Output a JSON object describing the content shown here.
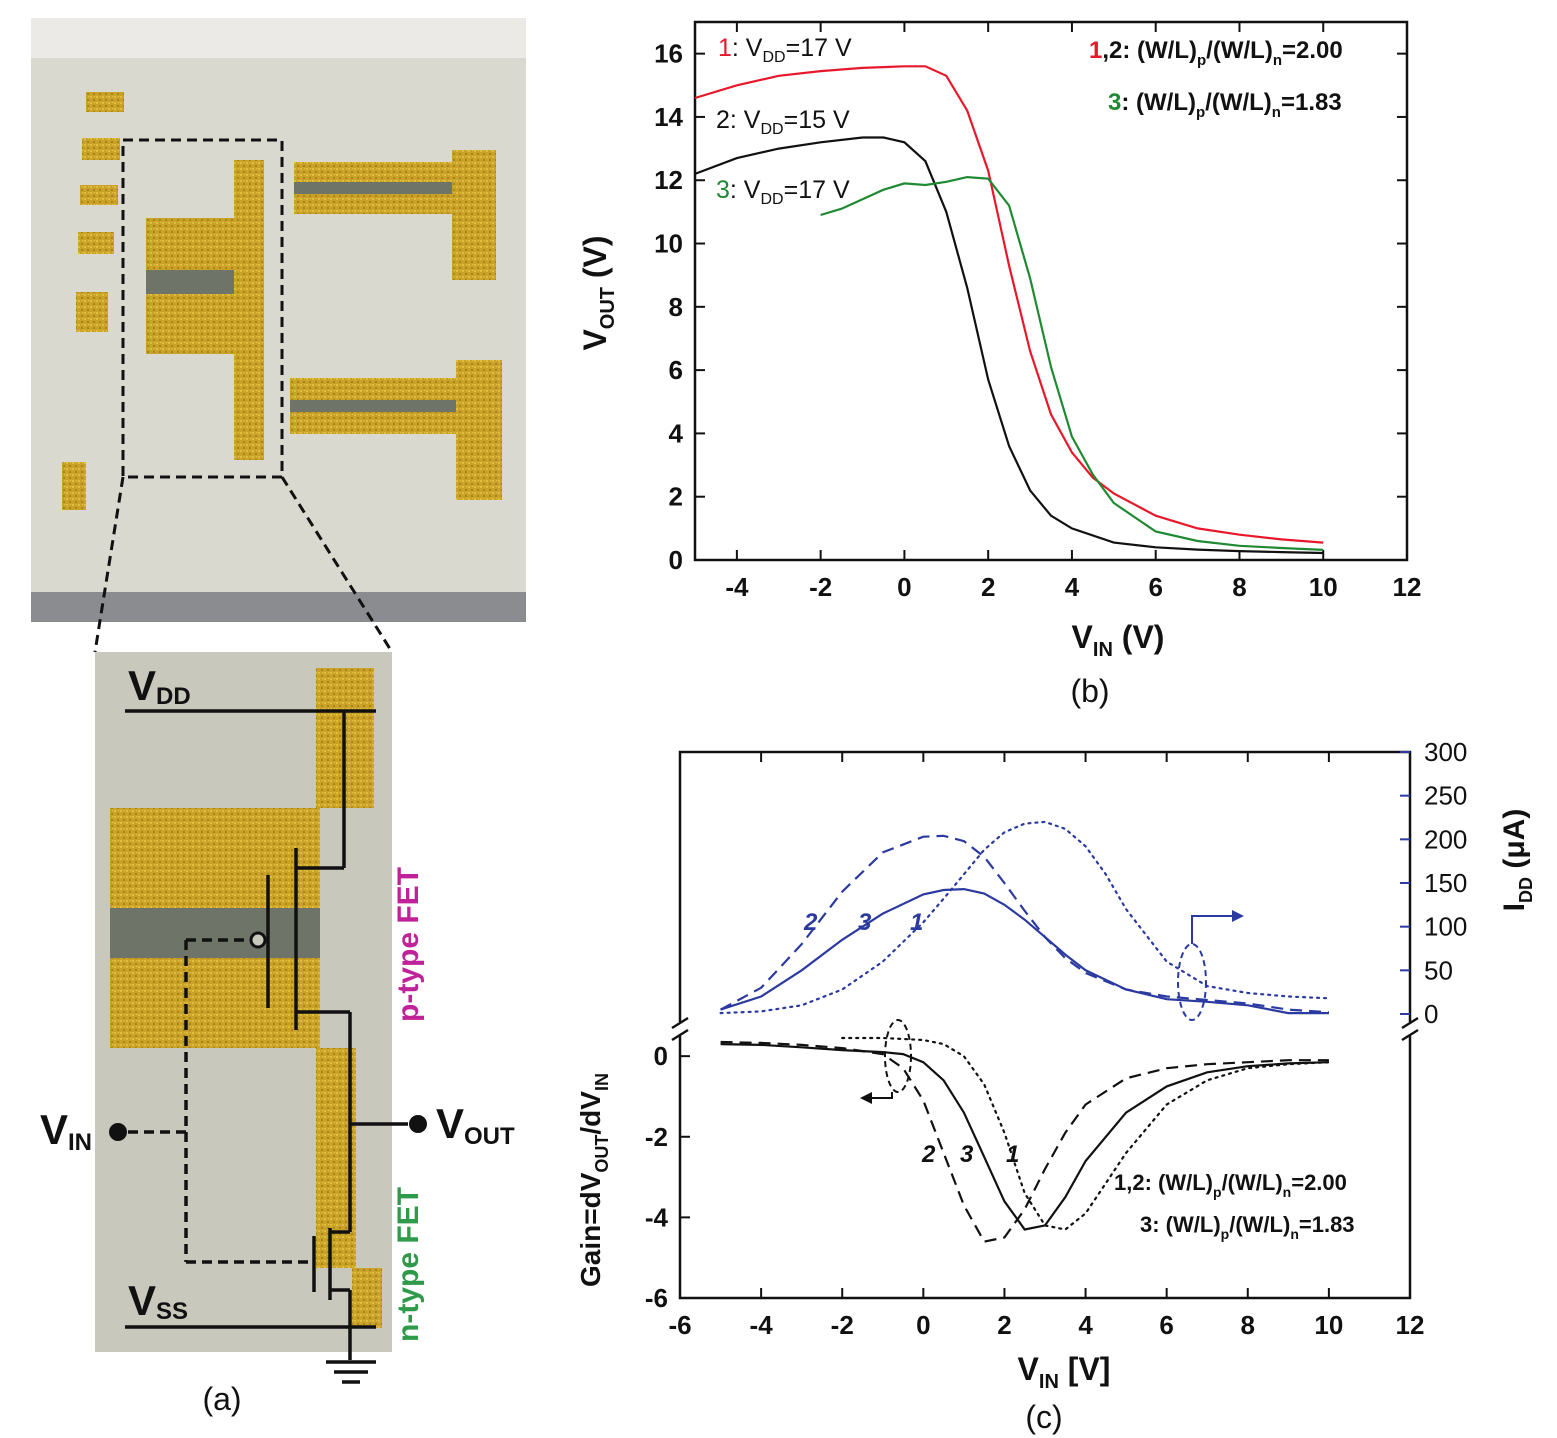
{
  "panel_a": {
    "caption": "(a)",
    "vdd": {
      "main": "V",
      "sub": "DD"
    },
    "vss": {
      "main": "V",
      "sub": "SS"
    },
    "vin": {
      "main": "V",
      "sub": "IN"
    },
    "vout": {
      "main": "V",
      "sub": "OUT"
    },
    "ptype_label": "p-type FET",
    "ntype_label": "n-type FET",
    "colors": {
      "gold": "#c9a227",
      "gold_dark": "#9c7a14",
      "gray_substrate": "#c8c8bd",
      "channel": "#6f7468",
      "ptype": "#c0229a",
      "ntype": "#2e9a4a"
    }
  },
  "chart_data": [
    {
      "id": "b",
      "type": "line",
      "caption": "(b)",
      "xlabel": {
        "main": "V",
        "sub": "IN",
        "tail": " (V)"
      },
      "ylabel": {
        "main": "V",
        "sub": "OUT",
        "tail": " (V)"
      },
      "xlim": [
        -5,
        12
      ],
      "ylim": [
        0,
        17
      ],
      "xticks": [
        -4,
        -2,
        0,
        2,
        4,
        6,
        8,
        10,
        12
      ],
      "yticks": [
        0,
        2,
        4,
        6,
        8,
        10,
        12,
        14,
        16
      ],
      "grid": false,
      "series": [
        {
          "name": "1",
          "color": "#e8182a",
          "x": [
            -5,
            -4,
            -3,
            -2,
            -1,
            0,
            0.5,
            1.0,
            1.5,
            2.0,
            2.5,
            3.0,
            3.5,
            4.0,
            4.5,
            5.0,
            6.0,
            7.0,
            8.0,
            9.0,
            10.0
          ],
          "y": [
            14.6,
            15.0,
            15.3,
            15.45,
            15.55,
            15.6,
            15.6,
            15.3,
            14.2,
            12.3,
            9.3,
            6.6,
            4.6,
            3.4,
            2.6,
            2.1,
            1.4,
            1.0,
            0.8,
            0.65,
            0.55
          ]
        },
        {
          "name": "2",
          "color": "#111111",
          "x": [
            -5,
            -4,
            -3,
            -2,
            -1,
            -0.5,
            0,
            0.5,
            1.0,
            1.5,
            2.0,
            2.5,
            3.0,
            3.5,
            4.0,
            5.0,
            6.0,
            7.0,
            8.0,
            9.0,
            10.0
          ],
          "y": [
            12.2,
            12.7,
            13.0,
            13.2,
            13.35,
            13.35,
            13.2,
            12.6,
            11.0,
            8.6,
            5.7,
            3.6,
            2.2,
            1.4,
            1.0,
            0.55,
            0.4,
            0.33,
            0.28,
            0.25,
            0.22
          ]
        },
        {
          "name": "3",
          "color": "#1f8a32",
          "x": [
            -2,
            -1.5,
            -1.0,
            -0.5,
            0,
            0.5,
            1.0,
            1.5,
            2.0,
            2.5,
            3.0,
            3.5,
            4.0,
            4.5,
            5.0,
            6.0,
            7.0,
            8.0,
            9.0,
            10.0
          ],
          "y": [
            10.9,
            11.1,
            11.4,
            11.7,
            11.9,
            11.85,
            11.95,
            12.1,
            12.05,
            11.2,
            8.9,
            6.1,
            3.9,
            2.7,
            1.8,
            0.9,
            0.6,
            0.45,
            0.38,
            0.32
          ]
        }
      ],
      "annotations": {
        "c1": {
          "num": "1",
          "text1": ": V",
          "sub": "DD",
          "text2": "=17 V"
        },
        "c2": {
          "num": "2",
          "text1": ": V",
          "sub": "DD",
          "text2": "=15 V"
        },
        "c3": {
          "num": "3",
          "text1": ": V",
          "sub": "DD",
          "text2": "=17 V"
        },
        "r12": {
          "num": "1",
          "rest": ",2: (W/L)",
          "sub1": "p",
          "mid": "/(W/L)",
          "sub2": "n",
          "tail": "=2.00"
        },
        "r3": {
          "num": "3",
          "rest": ": (W/L)",
          "sub1": "p",
          "mid": "/(W/L)",
          "sub2": "n",
          "tail": "=1.83"
        }
      }
    },
    {
      "id": "c",
      "type": "line",
      "caption": "(c)",
      "xlabel": {
        "main": "V",
        "sub": "IN",
        "tail": " [V]"
      },
      "ylabel_left": {
        "a": "Gain=dV",
        "sub1": "OUT",
        "b": "/dV",
        "sub2": "IN"
      },
      "ylabel_right": {
        "main": "I",
        "sub": "DD",
        "tail": " (μA)"
      },
      "xlim": [
        -6,
        12
      ],
      "xticks": [
        -6,
        -4,
        -2,
        0,
        2,
        4,
        6,
        8,
        10,
        12
      ],
      "gain_ylim": [
        -6,
        0.5
      ],
      "gain_yticks": [
        -6,
        -4,
        -2,
        0
      ],
      "idd_ylim": [
        0,
        300
      ],
      "idd_yticks": [
        0,
        50,
        100,
        150,
        200,
        250,
        300
      ],
      "grid": false,
      "idd_series": [
        {
          "name": "1",
          "style": "solid",
          "color": "#2b3aa0",
          "x": [
            -5,
            -4,
            -3,
            -2,
            -1,
            0,
            0.5,
            1.0,
            1.5,
            2.0,
            2.5,
            3.0,
            3.5,
            4.0,
            5.0,
            6.0,
            7.0,
            8.0,
            9.0,
            10.0
          ],
          "y": [
            5,
            20,
            50,
            85,
            115,
            137,
            142,
            143,
            138,
            125,
            108,
            88,
            68,
            50,
            28,
            17,
            14,
            10,
            1,
            1
          ]
        },
        {
          "name": "2",
          "style": "dashed",
          "color": "#2b3aa0",
          "x": [
            -5,
            -4,
            -3,
            -2,
            -1,
            0,
            0.5,
            1.0,
            1.5,
            2.0,
            2.5,
            3.0,
            3.5,
            4.0,
            5.0,
            6.0,
            7.0,
            8.0,
            9.0,
            10.0
          ],
          "y": [
            5,
            30,
            80,
            140,
            185,
            203,
            204,
            198,
            180,
            150,
            118,
            88,
            64,
            47,
            28,
            20,
            16,
            12,
            5,
            2
          ]
        },
        {
          "name": "3",
          "style": "dotted",
          "color": "#2b3aa0",
          "x": [
            -5,
            -4,
            -3,
            -2,
            -1,
            0,
            0.5,
            1.0,
            1.5,
            2.0,
            2.5,
            3.0,
            3.5,
            4.0,
            4.5,
            5.0,
            6.0,
            7.0,
            8.0,
            9.0,
            10.0
          ],
          "y": [
            1,
            3,
            10,
            28,
            60,
            105,
            132,
            160,
            188,
            208,
            218,
            220,
            212,
            192,
            160,
            120,
            60,
            32,
            24,
            20,
            18
          ]
        }
      ],
      "gain_series": [
        {
          "name": "1",
          "style": "dotted",
          "color": "#111111",
          "x": [
            -2,
            -1,
            0,
            0.5,
            1.0,
            1.5,
            2.0,
            2.5,
            3.0,
            3.5,
            4.0,
            5.0,
            6.0,
            7.0,
            8.0,
            9.0,
            10.0
          ],
          "y": [
            0.45,
            0.45,
            0.4,
            0.3,
            0.0,
            -0.7,
            -1.9,
            -3.4,
            -4.2,
            -4.3,
            -3.9,
            -2.4,
            -1.2,
            -0.6,
            -0.3,
            -0.2,
            -0.15
          ]
        },
        {
          "name": "2",
          "style": "dashed",
          "color": "#111111",
          "x": [
            -5,
            -4,
            -3,
            -2,
            -1,
            -0.5,
            0,
            0.5,
            1.0,
            1.5,
            2.0,
            2.5,
            3.0,
            3.5,
            4.0,
            5.0,
            6.0,
            7.0,
            8.0,
            9.0,
            10.0
          ],
          "y": [
            0.35,
            0.33,
            0.28,
            0.2,
            0.05,
            -0.3,
            -1.1,
            -2.4,
            -3.7,
            -4.6,
            -4.5,
            -3.8,
            -2.8,
            -1.9,
            -1.2,
            -0.55,
            -0.3,
            -0.2,
            -0.15,
            -0.1,
            -0.1
          ]
        },
        {
          "name": "3",
          "style": "solid",
          "color": "#111111",
          "x": [
            -5,
            -4,
            -3,
            -2,
            -1,
            -0.5,
            0,
            0.5,
            1.0,
            1.5,
            2.0,
            2.5,
            3.0,
            3.5,
            4.0,
            5.0,
            6.0,
            7.0,
            8.0,
            9.0,
            10.0
          ],
          "y": [
            0.3,
            0.28,
            0.22,
            0.15,
            0.1,
            0.05,
            -0.15,
            -0.6,
            -1.4,
            -2.5,
            -3.6,
            -4.3,
            -4.2,
            -3.5,
            -2.6,
            -1.4,
            -0.75,
            -0.4,
            -0.25,
            -0.18,
            -0.15
          ]
        }
      ],
      "labels": {
        "idd": [
          "2",
          "3",
          "1"
        ],
        "gain": [
          "2",
          "3",
          "1"
        ],
        "r12": {
          "rest": "1,2: (W/L)",
          "sub1": "p",
          "mid": "/(W/L)",
          "sub2": "n",
          "tail": "=2.00"
        },
        "r3": {
          "rest": "3: (W/L)",
          "sub1": "p",
          "mid": "/(W/L)",
          "sub2": "n",
          "tail": "=1.83"
        }
      }
    }
  ]
}
